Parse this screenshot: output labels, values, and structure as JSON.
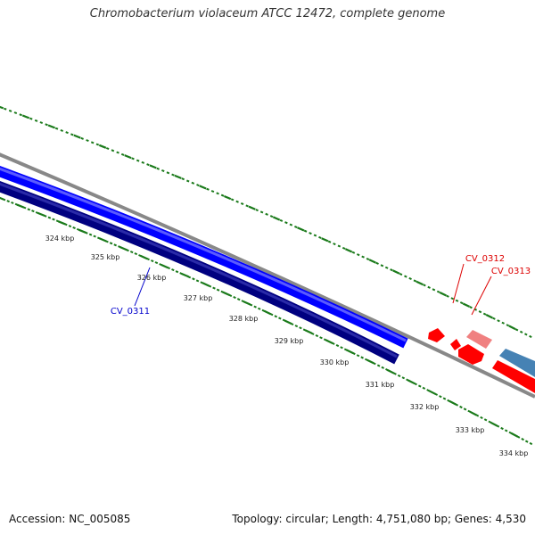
{
  "title": "Chromobacterium violaceum ATCC 12472, complete genome",
  "footer": {
    "accession": "Accession: NC_005085",
    "summary": "Topology: circular; Length: 4,751,080 bp; Genes: 4,530"
  },
  "scale_labels": [
    "324 kbp",
    "325 kbp",
    "326 kbp",
    "327 kbp",
    "328 kbp",
    "329 kbp",
    "330 kbp",
    "331 kbp",
    "332 kbp",
    "333 kbp",
    "334 kbp"
  ],
  "genes": [
    {
      "name": "CV_0311",
      "color": "#0000cc"
    },
    {
      "name": "CV_0312",
      "color": "#dd0000"
    },
    {
      "name": "CV_0313",
      "color": "#dd0000"
    }
  ],
  "colors": {
    "backbone": "#888888",
    "forward_cds": "#0000ff",
    "reverse_cds": "#000080",
    "red_feature": "#ff0000",
    "pink_feature": "#f08080",
    "steel_feature": "#4682b4",
    "ticks": "#1a7a1a"
  }
}
